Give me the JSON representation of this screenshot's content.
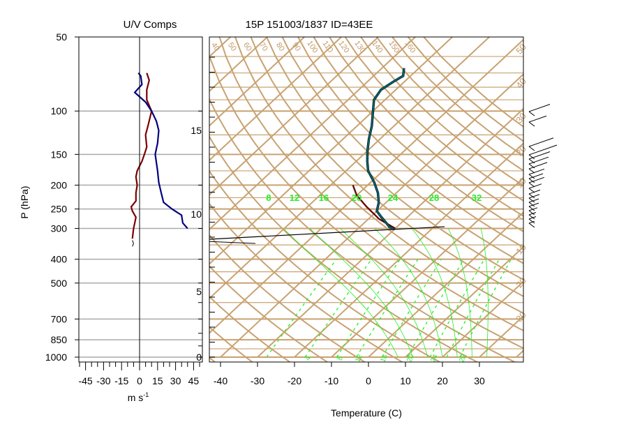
{
  "left_panel": {
    "title": "U/V Comps",
    "y_axis_label": "P (hPa)",
    "x_axis_label": "m s",
    "x_axis_label_sup": "-1",
    "pressure_ticks": [
      "50",
      "100",
      "150",
      "200",
      "250",
      "300",
      "400",
      "500",
      "700",
      "850",
      "1000"
    ],
    "speed_ticks": [
      "-45",
      "-30",
      "-15",
      "0",
      "15",
      "30",
      "45"
    ]
  },
  "main_panel": {
    "title": "15P 151003/1837 ID=43EE",
    "x_axis_label": "Temperature (C)",
    "temperature_ticks": [
      "-40",
      "-30",
      "-20",
      "-10",
      "0",
      "10",
      "20",
      "30"
    ],
    "height_ticks": [
      "0",
      "5",
      "10",
      "15"
    ],
    "dry_adiabat_labels": [
      "40",
      "50",
      "60",
      "70",
      "80",
      "90",
      "100",
      "110",
      "120",
      "130",
      "140",
      "150",
      "160"
    ],
    "isotherm_labels_right": [
      "50",
      "40",
      "30",
      "20",
      "10",
      "0",
      "10",
      "20",
      "30"
    ],
    "mixing_ratio_labels": [
      "8",
      "12",
      "16",
      "20",
      "24",
      "28",
      "32"
    ],
    "bottom_labels": [
      "4",
      "8",
      "12",
      "16",
      "20",
      "24",
      "28"
    ]
  },
  "colors": {
    "background_lines": "#c8a271",
    "mixing_ratio": "#22ee22",
    "temperature_profile": "#6a0a0a",
    "dewpoint_profile": "#005f6b",
    "u_component": "#7a0000",
    "v_component": "#000080",
    "gridline": "#aaaaaa",
    "text": "#000000"
  },
  "chart_data": [
    {
      "type": "line",
      "title": "U/V Comps",
      "xlabel": "m s-1",
      "ylabel": "P (hPa)",
      "xlim": [
        -55,
        55
      ],
      "ylim": [
        1000,
        50
      ],
      "y_scale": "log",
      "series": [
        {
          "name": "U",
          "points": [
            [
              -6,
              330
            ],
            [
              -5,
              300
            ],
            [
              -4,
              285
            ],
            [
              -3,
              270
            ],
            [
              -6,
              255
            ],
            [
              -7,
              245
            ],
            [
              -3,
              232
            ],
            [
              -3,
              215
            ],
            [
              -2,
              200
            ],
            [
              -3,
              185
            ],
            [
              -2,
              175
            ],
            [
              2,
              160
            ],
            [
              4,
              150
            ],
            [
              6,
              140
            ],
            [
              5,
              125
            ],
            [
              7,
              115
            ],
            [
              10,
              100
            ],
            [
              6,
              90
            ],
            [
              6,
              82
            ],
            [
              8,
              75
            ],
            [
              6,
              70
            ]
          ]
        },
        {
          "name": "V",
          "points": [
            [
              40,
              300
            ],
            [
              36,
              285
            ],
            [
              35,
              265
            ],
            [
              27,
              250
            ],
            [
              20,
              235
            ],
            [
              18,
              215
            ],
            [
              16,
              195
            ],
            [
              15,
              175
            ],
            [
              13,
              150
            ],
            [
              15,
              135
            ],
            [
              16,
              120
            ],
            [
              14,
              110
            ],
            [
              10,
              100
            ],
            [
              5,
              92
            ],
            [
              -4,
              84
            ],
            [
              2,
              78
            ],
            [
              1,
              72
            ],
            [
              -1,
              70
            ]
          ]
        }
      ]
    },
    {
      "type": "line",
      "title": "15P 151003/1837 ID=43EE",
      "xlabel": "Temperature (C)",
      "xlim": [
        -45,
        40
      ],
      "ylim": [
        1000,
        50
      ],
      "y_scale": "log",
      "skew": true,
      "series": [
        {
          "name": "Temperature",
          "points": [
            [
              -54,
              200
            ],
            [
              -50,
              220
            ],
            [
              -44,
              245
            ],
            [
              -37,
              275
            ],
            [
              -30,
              300
            ]
          ]
        },
        {
          "name": "Dewpoint",
          "points": [
            [
              -30,
              302
            ],
            [
              -32,
              296
            ],
            [
              -34,
              285
            ],
            [
              -37,
              270
            ],
            [
              -40,
              255
            ],
            [
              -42,
              235
            ],
            [
              -45,
              215
            ],
            [
              -49,
              195
            ],
            [
              -54,
              175
            ],
            [
              -57,
              160
            ],
            [
              -60,
              145
            ],
            [
              -63,
              130
            ],
            [
              -66,
              115
            ],
            [
              -70,
              100
            ],
            [
              -73,
              90
            ],
            [
              -74,
              82
            ],
            [
              -73,
              76
            ],
            [
              -72,
              72
            ],
            [
              -74,
              67
            ]
          ]
        }
      ]
    }
  ]
}
